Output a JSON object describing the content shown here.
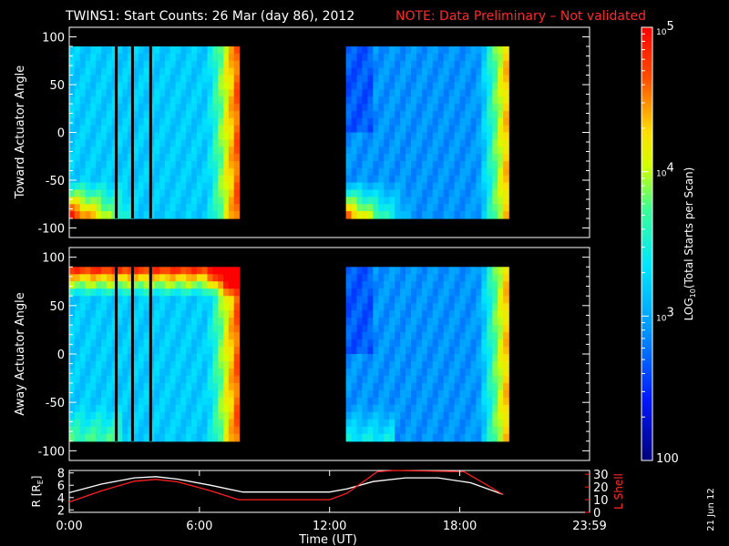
{
  "title": {
    "main": "TWINS1: Start Counts: 26 Mar (day  86), 2012",
    "note": "NOTE: Data Preliminary – Not validated"
  },
  "chart_data": [
    {
      "type": "heatmap",
      "ylabel": "Toward Actuator Angle",
      "xlim": [
        "0:00",
        "23:59"
      ],
      "ylim": [
        -110,
        110
      ],
      "yticks": [
        100,
        50,
        0,
        -50,
        -100
      ],
      "data_angle_range": [
        -90,
        90
      ],
      "data_intervals": [
        [
          "0:00",
          "7:50"
        ],
        [
          "12:45",
          "20:15"
        ]
      ],
      "gap_lines": [
        "2:10",
        "2:55",
        "3:45"
      ]
    },
    {
      "type": "heatmap",
      "ylabel": "Away Actuator Angle",
      "xlim": [
        "0:00",
        "23:59"
      ],
      "ylim": [
        -110,
        110
      ],
      "yticks": [
        100,
        50,
        0,
        -50,
        -100
      ],
      "data_angle_range": [
        -90,
        90
      ],
      "data_intervals": [
        [
          "0:00",
          "7:50"
        ],
        [
          "12:45",
          "20:15"
        ]
      ],
      "gap_lines": [
        "2:10",
        "2:55",
        "3:45"
      ]
    },
    {
      "type": "line",
      "xlabel": "Time (UT)",
      "xticks": [
        "0:00",
        "6:00",
        "12:00",
        "18:00",
        "23:59"
      ],
      "y1label": "R [R",
      "y1label_sub": "E",
      "y1label_end": "]",
      "y1ticks": [
        2,
        4,
        6,
        8
      ],
      "y2label": "L Shell",
      "y2ticks": [
        0,
        10,
        20,
        30
      ],
      "series": [
        {
          "axis": "R",
          "color": "#ffffff",
          "x": [
            0,
            1.5,
            3,
            4,
            5,
            6.5,
            8,
            10,
            12,
            12.8,
            14,
            15.5,
            17,
            18.5,
            20
          ],
          "values": [
            4.8,
            6.2,
            7.2,
            7.4,
            7.0,
            6.0,
            4.9,
            4.9,
            4.9,
            5.4,
            6.6,
            7.2,
            7.2,
            6.4,
            4.5
          ]
        },
        {
          "axis": "L",
          "color": "#ff2020",
          "x": [
            0,
            1.5,
            3,
            4,
            5,
            6.5,
            7.8,
            10,
            12,
            12.8,
            14.2,
            15,
            18.2,
            19,
            20
          ],
          "values": [
            8,
            17,
            24.5,
            26,
            24,
            17,
            10,
            10,
            10,
            15,
            32,
            40,
            32,
            24,
            14
          ]
        }
      ]
    }
  ],
  "colorbar": {
    "label": "LOG",
    "label_sub": "10",
    "label_end": "(Total Starts per Scan)",
    "ticks": [
      {
        "base": "10",
        "exp": "5",
        "value": 100000
      },
      {
        "base": "10",
        "exp": "4",
        "value": 10000
      },
      {
        "base": "10",
        "exp": "3",
        "value": 1000
      },
      {
        "base": "100",
        "exp": "",
        "value": 100
      }
    ]
  },
  "date_stamp": "21 Jun 12"
}
